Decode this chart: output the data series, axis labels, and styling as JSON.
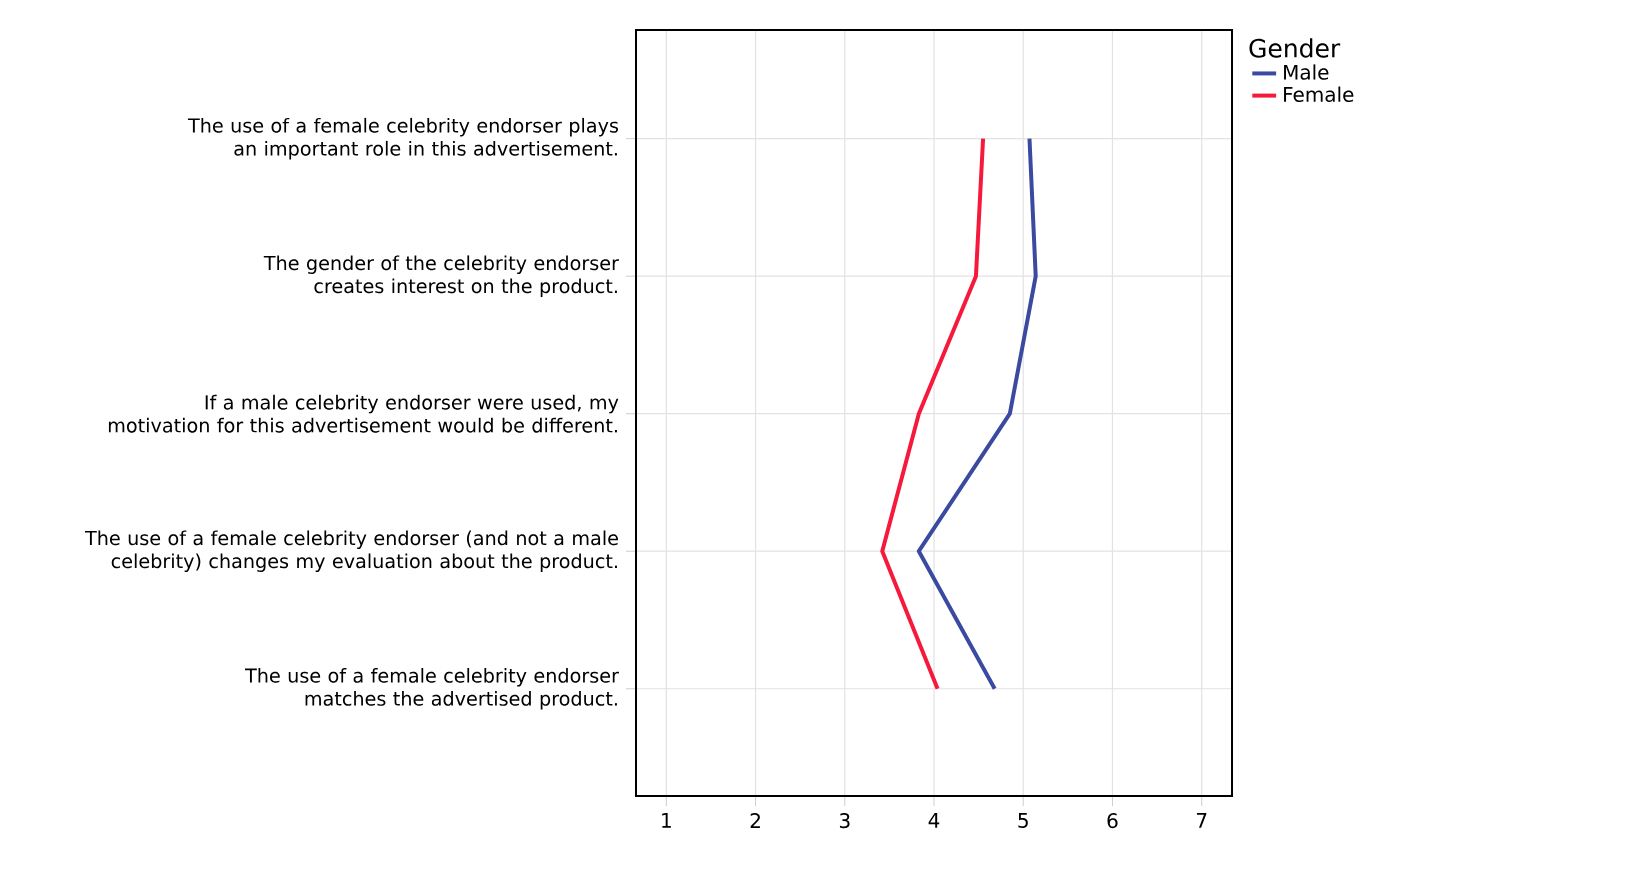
{
  "chart_data": {
    "type": "line",
    "orientation": "horizontal",
    "categories": [
      "The use of a female celebrity endorser plays an important role in this advertisement.",
      "The gender of the celebrity endorser creates interest on the product.",
      "If a male celebrity endorser were used, my motivation for this advertisement would be different.",
      "The use of a female celebrity endorser (and not a male celebrity) changes my evaluation about the product.",
      "The use of a female celebrity endorser matches the advertised product."
    ],
    "series": [
      {
        "name": "Male",
        "color": "#3a4aa0",
        "values": [
          5.07,
          5.14,
          4.85,
          3.83,
          4.68
        ]
      },
      {
        "name": "Female",
        "color": "#f5193c",
        "values": [
          4.55,
          4.47,
          3.83,
          3.42,
          4.04
        ]
      }
    ],
    "xlim": [
      0.66,
      7.34
    ],
    "xticks": [
      1,
      2,
      3,
      4,
      5,
      6,
      7
    ],
    "grid": true,
    "legend": "top right",
    "legend_title": "Gender",
    "marker": "none",
    "line_style": "solid"
  }
}
